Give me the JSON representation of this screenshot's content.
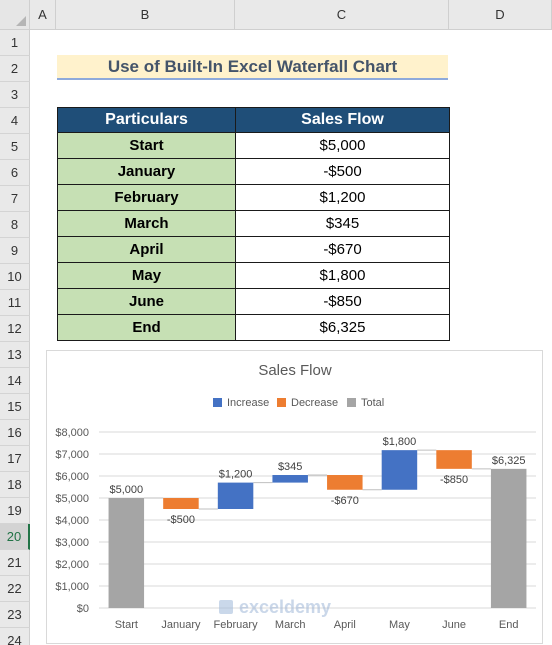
{
  "columns": [
    "A",
    "B",
    "C",
    "D"
  ],
  "rows": [
    "1",
    "2",
    "3",
    "4",
    "5",
    "6",
    "7",
    "8",
    "9",
    "10",
    "11",
    "12",
    "13",
    "14",
    "15",
    "16",
    "17",
    "18",
    "19",
    "20",
    "21",
    "22",
    "23",
    "24"
  ],
  "active_row": "20",
  "title": "Use of Built-In Excel Waterfall Chart",
  "table": {
    "headers": [
      "Particulars",
      "Sales Flow"
    ],
    "rows": [
      {
        "label": "Start",
        "value": "$5,000"
      },
      {
        "label": "January",
        "value": "-$500"
      },
      {
        "label": "February",
        "value": "$1,200"
      },
      {
        "label": "March",
        "value": "$345"
      },
      {
        "label": "April",
        "value": "-$670"
      },
      {
        "label": "May",
        "value": "$1,800"
      },
      {
        "label": "June",
        "value": "-$850"
      },
      {
        "label": "End",
        "value": "$6,325"
      }
    ]
  },
  "watermark": "exceldemy",
  "colors": {
    "increase": "#4472c4",
    "decrease": "#ed7d31",
    "total": "#a5a5a5",
    "header_fill": "#1f4e78",
    "label_fill": "#c6e0b4",
    "title_fill": "#fff2cc"
  },
  "chart_data": {
    "type": "bar",
    "subtype": "waterfall",
    "title": "Sales Flow",
    "legend": [
      "Increase",
      "Decrease",
      "Total"
    ],
    "legend_position": "top",
    "categories": [
      "Start",
      "January",
      "February",
      "March",
      "April",
      "May",
      "June",
      "End"
    ],
    "values": [
      5000,
      -500,
      1200,
      345,
      -670,
      1800,
      -850,
      6325
    ],
    "kinds": [
      "total",
      "decrease",
      "increase",
      "increase",
      "decrease",
      "increase",
      "decrease",
      "total"
    ],
    "data_labels": [
      "$5,000",
      "-$500",
      "$1,200",
      "$345",
      "-$670",
      "$1,800",
      "-$850",
      "$6,325"
    ],
    "y_ticks": [
      "$0",
      "$1,000",
      "$2,000",
      "$3,000",
      "$4,000",
      "$5,000",
      "$6,000",
      "$7,000",
      "$8,000"
    ],
    "ylim": [
      0,
      8000
    ],
    "grid": true
  }
}
